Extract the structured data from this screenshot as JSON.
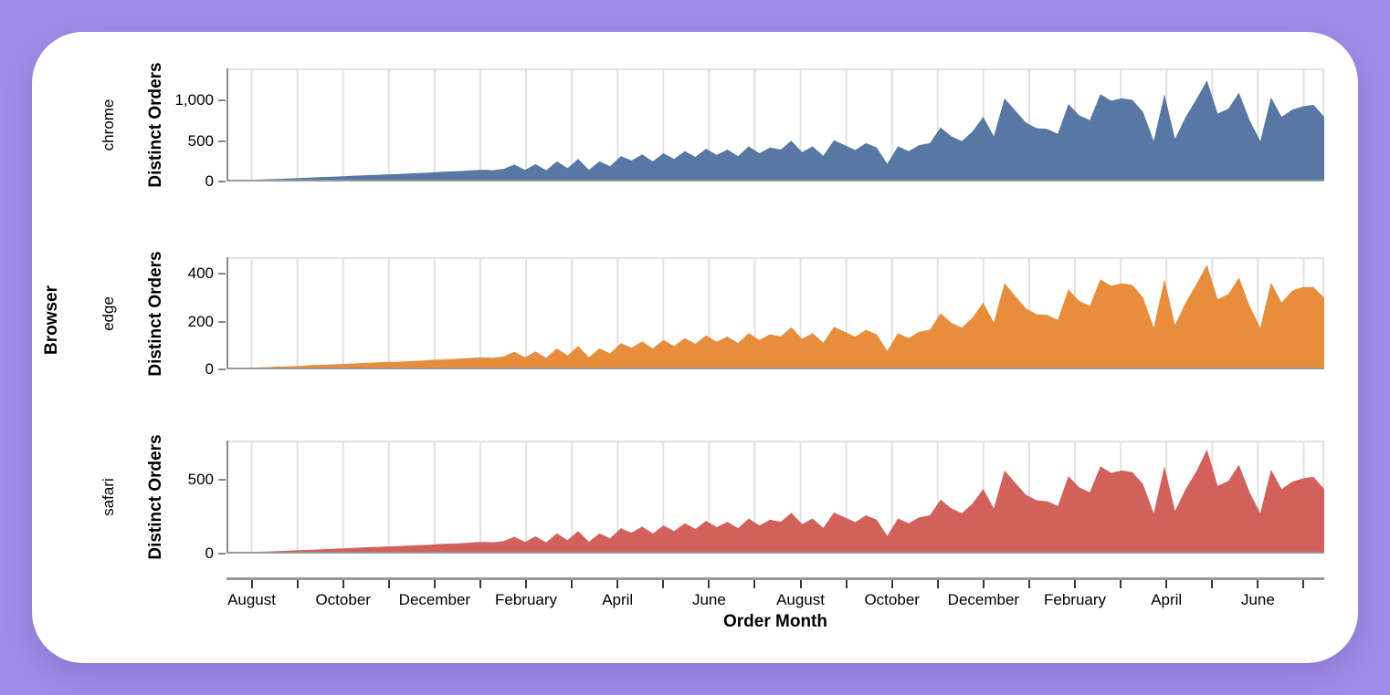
{
  "page": {
    "background_color": "#a28ce9",
    "card_color": "#ffffff"
  },
  "chart_data": {
    "type": "area",
    "facet_title": "Browser",
    "xlabel": "Order Month",
    "ylabel": "Distinct Orders",
    "grid": true,
    "x_span_months": 24,
    "x_tick_labels": [
      "August",
      "October",
      "December",
      "February",
      "April",
      "June",
      "August",
      "October",
      "December",
      "February",
      "April",
      "June"
    ],
    "gridline_color": "#e2e2e2",
    "axis_domain_color": "#999999",
    "facets": [
      {
        "label": "chrome",
        "color": "#5778a3",
        "ylabel": "Distinct Orders",
        "ylim": [
          0,
          1400
        ],
        "yticks": [
          0,
          500,
          1000
        ],
        "ytick_labels": [
          "0",
          "500",
          "1,000"
        ],
        "values": [
          15,
          18,
          20,
          24,
          28,
          33,
          38,
          44,
          50,
          55,
          60,
          66,
          72,
          78,
          82,
          88,
          92,
          98,
          104,
          110,
          118,
          124,
          130,
          138,
          146,
          140,
          155,
          210,
          145,
          215,
          140,
          250,
          165,
          280,
          145,
          250,
          190,
          315,
          260,
          335,
          250,
          350,
          280,
          375,
          305,
          405,
          330,
          395,
          315,
          435,
          350,
          420,
          395,
          505,
          365,
          435,
          320,
          510,
          450,
          390,
          475,
          420,
          220,
          435,
          375,
          450,
          475,
          670,
          560,
          500,
          620,
          800,
          560,
          1030,
          880,
          730,
          660,
          650,
          590,
          960,
          820,
          760,
          1080,
          1000,
          1030,
          1010,
          860,
          500,
          1080,
          530,
          800,
          1020,
          1250,
          840,
          900,
          1100,
          760,
          500,
          1040,
          800,
          890,
          930,
          950,
          800
        ]
      },
      {
        "label": "edge",
        "color": "#e78d3b",
        "ylabel": "Distinct Orders",
        "ylim": [
          0,
          470
        ],
        "yticks": [
          0,
          200,
          400
        ],
        "ytick_labels": [
          "0",
          "200",
          "400"
        ],
        "values": [
          5,
          6,
          7,
          8,
          10,
          12,
          13,
          15,
          18,
          19,
          21,
          23,
          25,
          27,
          29,
          31,
          32,
          34,
          36,
          39,
          41,
          43,
          46,
          48,
          51,
          49,
          54,
          74,
          51,
          75,
          49,
          88,
          58,
          98,
          51,
          88,
          67,
          110,
          91,
          117,
          88,
          123,
          98,
          131,
          107,
          142,
          116,
          138,
          110,
          152,
          123,
          147,
          138,
          177,
          128,
          152,
          112,
          179,
          158,
          137,
          166,
          147,
          77,
          152,
          131,
          158,
          166,
          235,
          196,
          175,
          217,
          280,
          196,
          361,
          308,
          256,
          231,
          228,
          207,
          336,
          287,
          266,
          378,
          350,
          361,
          354,
          301,
          175,
          378,
          186,
          280,
          357,
          438,
          294,
          315,
          385,
          266,
          175,
          364,
          280,
          330,
          345,
          345,
          300
        ]
      },
      {
        "label": "safari",
        "color": "#d2615c",
        "ylabel": "Distinct Orders",
        "ylim": [
          0,
          770
        ],
        "yticks": [
          0,
          500
        ],
        "ytick_labels": [
          "0",
          "500"
        ],
        "values": [
          8,
          10,
          11,
          13,
          15,
          18,
          21,
          24,
          27,
          30,
          33,
          36,
          40,
          43,
          45,
          48,
          51,
          54,
          57,
          60,
          65,
          68,
          71,
          76,
          80,
          77,
          85,
          115,
          80,
          118,
          77,
          137,
          91,
          154,
          80,
          137,
          104,
          173,
          143,
          184,
          137,
          192,
          154,
          206,
          168,
          223,
          181,
          217,
          173,
          239,
          192,
          231,
          217,
          278,
          201,
          239,
          176,
          280,
          247,
          214,
          261,
          231,
          121,
          239,
          206,
          247,
          261,
          368,
          308,
          275,
          341,
          440,
          308,
          566,
          484,
          401,
          363,
          357,
          324,
          528,
          451,
          418,
          594,
          550,
          566,
          555,
          473,
          275,
          594,
          291,
          440,
          561,
          710,
          462,
          495,
          605,
          418,
          275,
          572,
          440,
          490,
          512,
          522,
          440
        ]
      }
    ]
  }
}
